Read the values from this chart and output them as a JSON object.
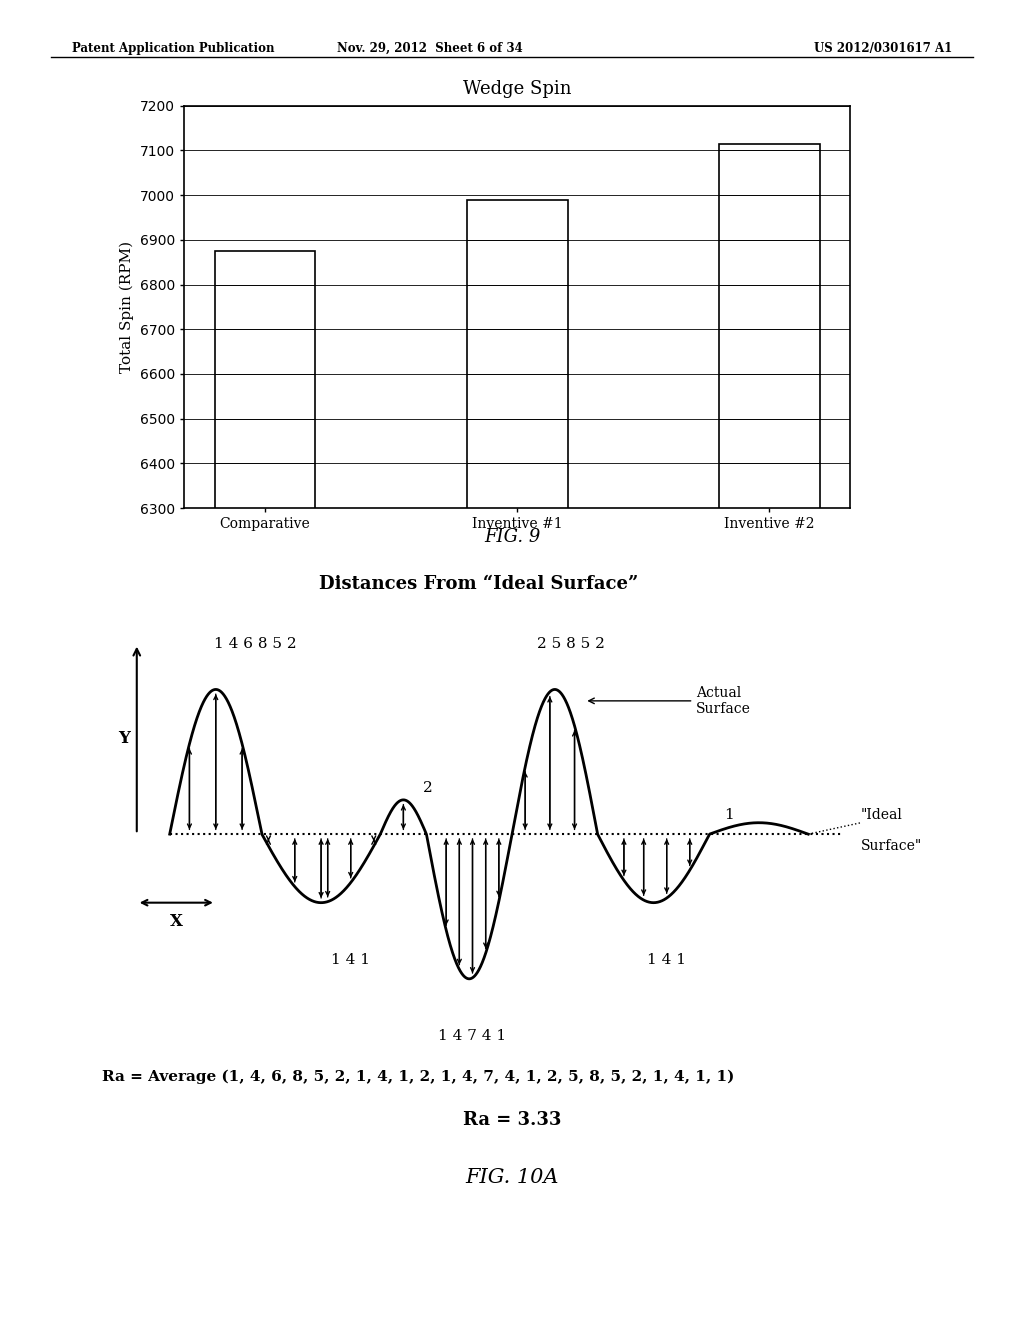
{
  "header_left": "Patent Application Publication",
  "header_mid": "Nov. 29, 2012  Sheet 6 of 34",
  "header_right": "US 2012/0301617 A1",
  "fig9_title": "Wedge Spin",
  "fig9_ylabel": "Total Spin (RPM)",
  "fig9_categories": [
    "Comparative",
    "Inventive #1",
    "Inventive #2"
  ],
  "fig9_values": [
    6875,
    6990,
    7115
  ],
  "fig9_ylim": [
    6300,
    7200
  ],
  "fig9_yticks": [
    6300,
    6400,
    6500,
    6600,
    6700,
    6800,
    6900,
    7000,
    7100,
    7200
  ],
  "fig9_label": "FIG. 9",
  "fig10_title": "Distances From “Ideal Surface”",
  "fig10_label": "FIG. 10A",
  "ra_formula": "Ra = Average (1, 4, 6, 8, 5, 2, 1, 4, 1, 2, 1, 4, 7, 4, 1, 2, 5, 8, 5, 2, 1, 4, 1, 1)",
  "ra_value": "Ra = 3.33",
  "bg_color": "#ffffff",
  "bar_color": "#ffffff",
  "bar_edge": "#000000"
}
